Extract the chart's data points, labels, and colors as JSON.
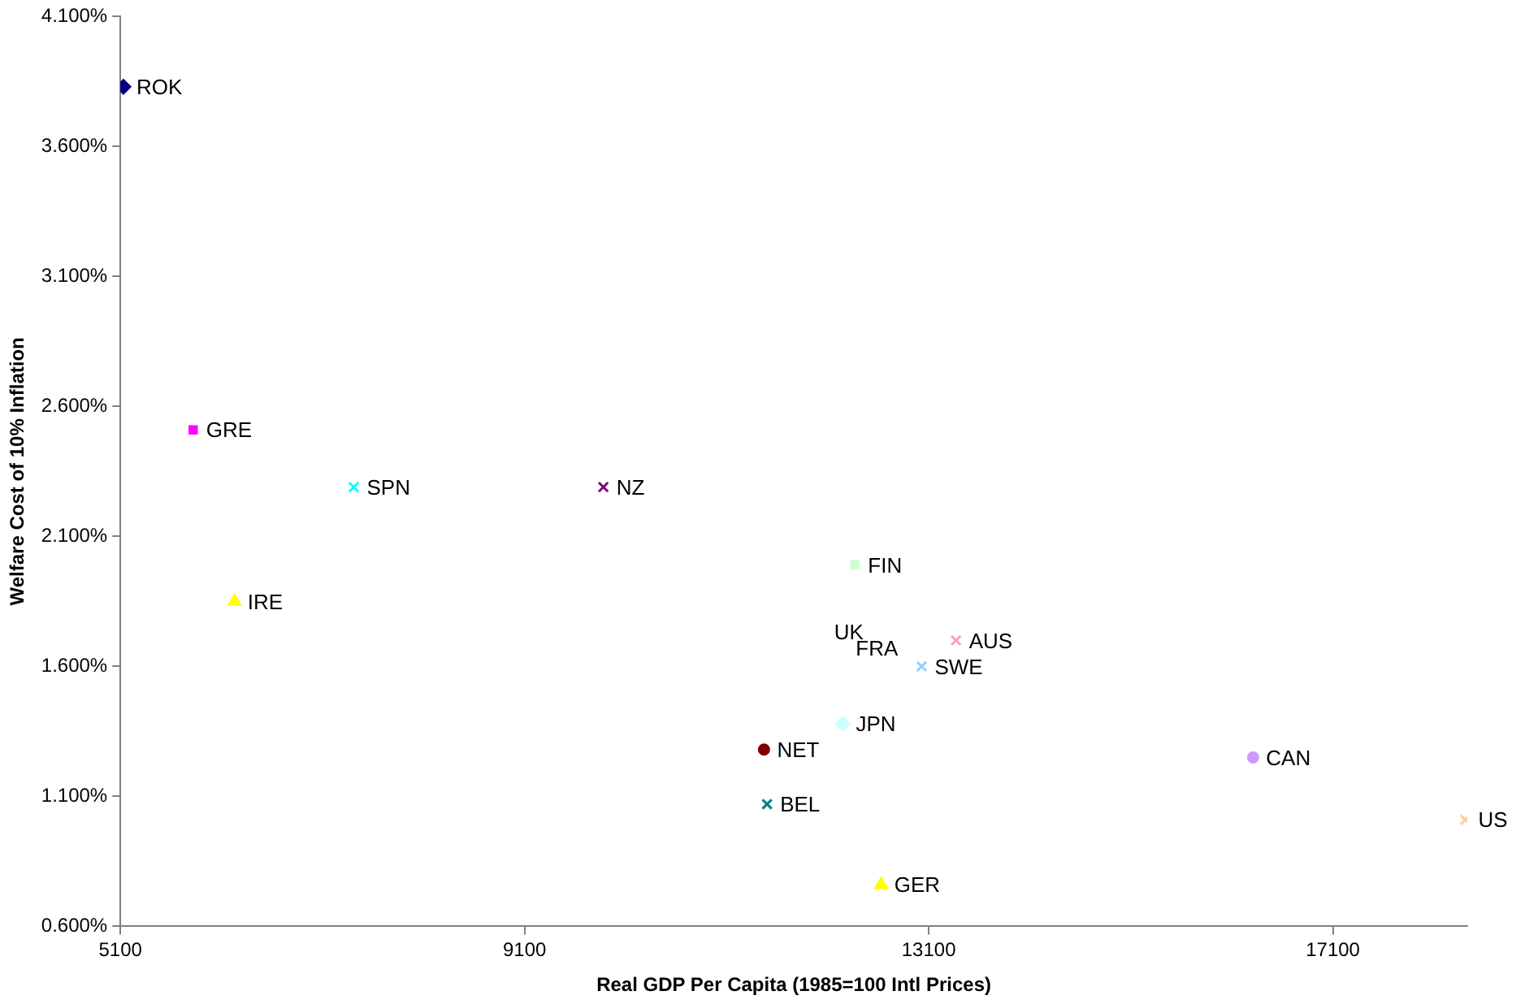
{
  "chart_data": {
    "type": "scatter",
    "xlabel": "Real GDP Per Capita (1985=100 Intl Prices)",
    "ylabel": "Welfare Cost of 10% Inflation",
    "xlim": [
      5100,
      18430
    ],
    "xticks": [
      5100,
      9100,
      13100,
      17100
    ],
    "ylim": [
      0.6,
      4.1
    ],
    "yticks": [
      {
        "value": 0.6,
        "label": "0.600%"
      },
      {
        "value": 1.1,
        "label": "1.100%"
      },
      {
        "value": 1.6,
        "label": "1.600%"
      },
      {
        "value": 2.1,
        "label": "2.100%"
      },
      {
        "value": 2.6,
        "label": "2.600%"
      },
      {
        "value": 3.1,
        "label": "3.100%"
      },
      {
        "value": 3.6,
        "label": "3.600%"
      },
      {
        "value": 4.1,
        "label": "4.100%"
      }
    ],
    "grid": false,
    "legend": false,
    "annotations": [
      "UK",
      "FRA"
    ],
    "series": [
      {
        "name": "ROK",
        "color": "#000080",
        "marker": "diamond",
        "x": [
          5130
        ],
        "values": [
          3.83
        ]
      },
      {
        "name": "GRE",
        "color": "#ff00ff",
        "marker": "square",
        "x": [
          5820
        ],
        "values": [
          2.51
        ]
      },
      {
        "name": "SPN",
        "color": "#00ffff",
        "marker": "cross",
        "x": [
          7410
        ],
        "values": [
          2.29
        ]
      },
      {
        "name": "NZ",
        "color": "#800080",
        "marker": "cross",
        "x": [
          9880
        ],
        "values": [
          2.29
        ]
      },
      {
        "name": "IRE",
        "color": "#ffff00",
        "marker": "triangle",
        "x": [
          6230
        ],
        "values": [
          1.85
        ]
      },
      {
        "name": "FIN",
        "color": "#ccffcc",
        "marker": "square",
        "x": [
          12370
        ],
        "values": [
          1.99
        ]
      },
      {
        "name": "AUS",
        "color": "#ff99cc",
        "marker": "cross",
        "x": [
          13370
        ],
        "values": [
          1.7
        ]
      },
      {
        "name": "SWE",
        "color": "#99ccff",
        "marker": "cross",
        "x": [
          13030
        ],
        "values": [
          1.6
        ]
      },
      {
        "name": "JPN",
        "color": "#ccffff",
        "marker": "diamond",
        "x": [
          12250
        ],
        "values": [
          1.38
        ]
      },
      {
        "name": "NET",
        "color": "#800000",
        "marker": "circle",
        "x": [
          11470
        ],
        "values": [
          1.28
        ]
      },
      {
        "name": "BEL",
        "color": "#008080",
        "marker": "cross",
        "x": [
          11500
        ],
        "values": [
          1.07
        ]
      },
      {
        "name": "CAN",
        "color": "#cc99ff",
        "marker": "circle",
        "x": [
          16310
        ],
        "values": [
          1.25
        ]
      },
      {
        "name": "US",
        "color": "#ffcc99",
        "marker": "cross",
        "x": [
          18410
        ],
        "values": [
          1.01
        ]
      },
      {
        "name": "GER",
        "color": "#ffff00",
        "marker": "triangle",
        "x": [
          12630
        ],
        "values": [
          0.76
        ]
      }
    ]
  }
}
